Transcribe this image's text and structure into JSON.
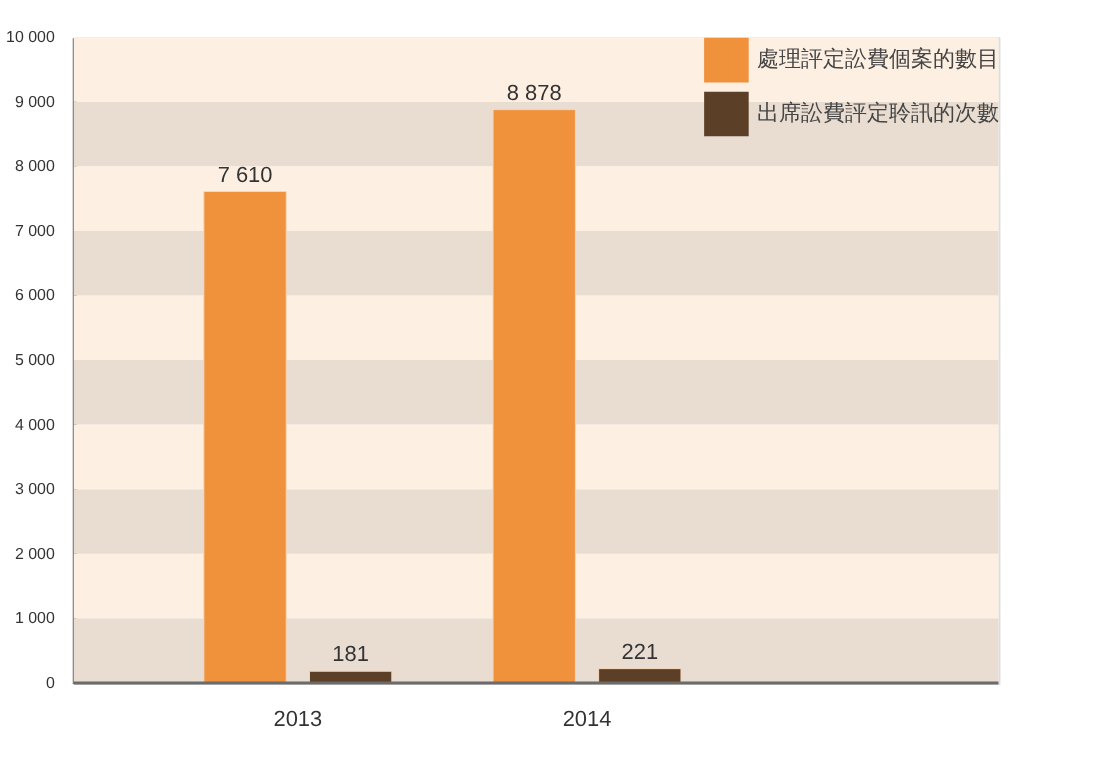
{
  "chart_data": {
    "type": "bar",
    "categories": [
      "2013",
      "2014"
    ],
    "series": [
      {
        "name": "處理評定訟費個案的數目",
        "color": "#f0913b",
        "values": [
          7610,
          8878
        ]
      },
      {
        "name": "出席訟費評定聆訊的次數",
        "color": "#5c3f27",
        "values": [
          181,
          221
        ]
      }
    ],
    "ylim": [
      0,
      10000
    ],
    "yticks": [
      0,
      {
        "value": 1000,
        "label": "1 000"
      },
      {
        "value": 2000,
        "label": "2 000"
      },
      {
        "value": 3000,
        "label": "3 000"
      },
      {
        "value": 4000,
        "label": "4 000"
      },
      {
        "value": 5000,
        "label": "5 000"
      },
      {
        "value": 6000,
        "label": "6 000"
      },
      {
        "value": 7000,
        "label": "7 000"
      },
      {
        "value": 8000,
        "label": "8 000"
      },
      {
        "value": 9000,
        "label": "9 000"
      },
      {
        "value": 10000,
        "label": "10 000"
      }
    ],
    "value_labels": [
      [
        "7 610",
        "8 878"
      ],
      [
        "181",
        "221"
      ]
    ],
    "legend": "top right"
  }
}
